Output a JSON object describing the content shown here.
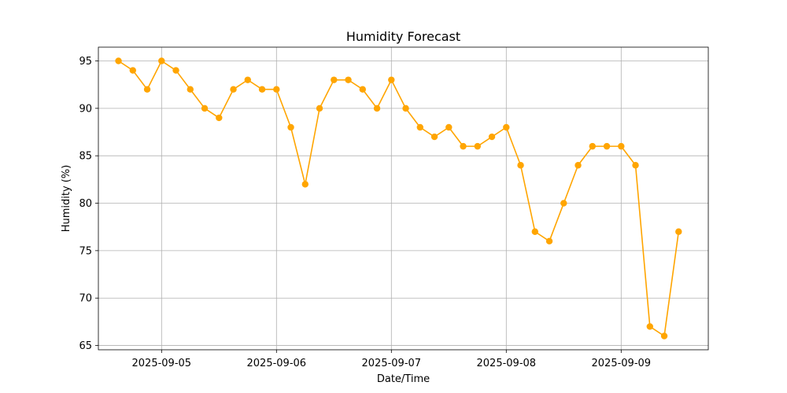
{
  "chart_data": {
    "type": "line",
    "title": "Humidity Forecast",
    "xlabel": "Date/Time",
    "ylabel": "Humidity (%)",
    "grid": true,
    "legend": "none",
    "colors": {
      "line": "#FFA500",
      "grid": "#b0b0b0",
      "axes": "#000000"
    },
    "ylim": [
      64.55,
      96.45
    ],
    "xlim": [
      "2025-09-04 10:48",
      "2025-09-09 18:12"
    ],
    "yticks": [
      65,
      70,
      75,
      80,
      85,
      90,
      95
    ],
    "xticks": [
      "2025-09-05",
      "2025-09-06",
      "2025-09-07",
      "2025-09-08",
      "2025-09-09"
    ],
    "x": [
      "2025-09-04 15:00",
      "2025-09-04 18:00",
      "2025-09-04 21:00",
      "2025-09-05 00:00",
      "2025-09-05 03:00",
      "2025-09-05 06:00",
      "2025-09-05 09:00",
      "2025-09-05 12:00",
      "2025-09-05 15:00",
      "2025-09-05 18:00",
      "2025-09-05 21:00",
      "2025-09-06 00:00",
      "2025-09-06 03:00",
      "2025-09-06 06:00",
      "2025-09-06 09:00",
      "2025-09-06 12:00",
      "2025-09-06 15:00",
      "2025-09-06 18:00",
      "2025-09-06 21:00",
      "2025-09-07 00:00",
      "2025-09-07 03:00",
      "2025-09-07 06:00",
      "2025-09-07 09:00",
      "2025-09-07 12:00",
      "2025-09-07 15:00",
      "2025-09-07 18:00",
      "2025-09-07 21:00",
      "2025-09-08 00:00",
      "2025-09-08 03:00",
      "2025-09-08 06:00",
      "2025-09-08 09:00",
      "2025-09-08 12:00",
      "2025-09-08 15:00",
      "2025-09-08 18:00",
      "2025-09-08 21:00",
      "2025-09-09 00:00",
      "2025-09-09 03:00",
      "2025-09-09 06:00",
      "2025-09-09 09:00",
      "2025-09-09 12:00"
    ],
    "series": [
      {
        "values": [
          95,
          94,
          92,
          95,
          94,
          92,
          90,
          89,
          92,
          93,
          92,
          92,
          88,
          82,
          90,
          93,
          93,
          92,
          90,
          93,
          90,
          88,
          87,
          88,
          86,
          86,
          87,
          88,
          84,
          77,
          76,
          80,
          84,
          86,
          86,
          86,
          84,
          67,
          66,
          77
        ]
      }
    ]
  }
}
